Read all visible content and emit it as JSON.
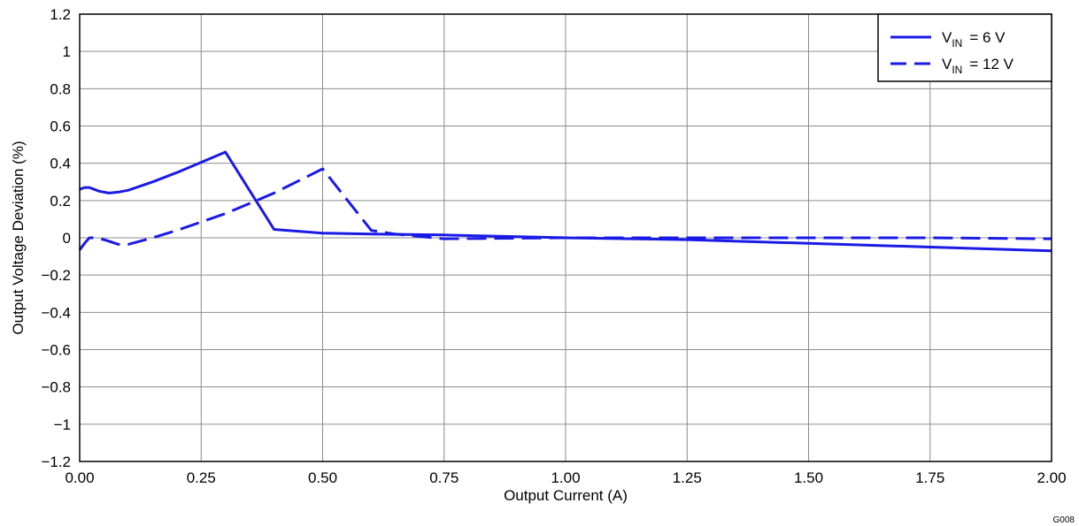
{
  "chart_data": {
    "type": "line",
    "xlabel": "Output Current (A)",
    "ylabel": "Output Voltage Deviation (%)",
    "xlim": [
      0,
      2
    ],
    "ylim": [
      -1.2,
      1.2
    ],
    "x_ticks": [
      0,
      0.25,
      0.5,
      0.75,
      1.0,
      1.25,
      1.5,
      1.75,
      2.0
    ],
    "x_tick_labels": [
      "0.00",
      "0.25",
      "0.50",
      "0.75",
      "1.00",
      "1.25",
      "1.50",
      "1.75",
      "2.00"
    ],
    "y_ticks": [
      1.2,
      1,
      0.8,
      0.6,
      0.4,
      0.2,
      0,
      -0.2,
      -0.4,
      -0.6,
      -0.8,
      -1,
      -1.2
    ],
    "y_tick_labels": [
      "1.2",
      "1",
      "0.8",
      "0.6",
      "0.4",
      "0.2",
      "0",
      "−0.2",
      "−0.4",
      "−0.6",
      "−0.8",
      "−1",
      "−1.2"
    ],
    "grid": true,
    "legend_position": "top-right",
    "line_color": "#1a1ae6",
    "series": [
      {
        "name": "6 V",
        "legend_main": "V",
        "legend_sub": "IN",
        "legend_value": "=  6 V",
        "style": "solid",
        "x": [
          0,
          0.01,
          0.02,
          0.03,
          0.04,
          0.06,
          0.08,
          0.1,
          0.15,
          0.2,
          0.25,
          0.3,
          0.4,
          0.5,
          0.6,
          0.75,
          1.0,
          1.25,
          1.5,
          1.75,
          2.0
        ],
        "y": [
          0.26,
          0.27,
          0.27,
          0.26,
          0.25,
          0.24,
          0.245,
          0.255,
          0.3,
          0.35,
          0.405,
          0.46,
          0.045,
          0.025,
          0.02,
          0.015,
          0.0,
          -0.01,
          -0.03,
          -0.05,
          -0.07
        ]
      },
      {
        "name": "12 V",
        "legend_main": "V",
        "legend_sub": "IN",
        "legend_value": "=  12 V",
        "style": "dashed",
        "x": [
          0,
          0.01,
          0.02,
          0.03,
          0.05,
          0.08,
          0.1,
          0.15,
          0.2,
          0.3,
          0.4,
          0.5,
          0.6,
          0.65,
          0.75,
          1.0,
          1.25,
          1.5,
          1.75,
          2.0
        ],
        "y": [
          -0.065,
          -0.03,
          0.0,
          0.0,
          -0.01,
          -0.035,
          -0.035,
          0.0,
          0.04,
          0.13,
          0.24,
          0.37,
          0.04,
          0.02,
          -0.005,
          0.0,
          0.0,
          0.0,
          0.0,
          -0.005
        ]
      }
    ]
  },
  "figure_code": "G008"
}
